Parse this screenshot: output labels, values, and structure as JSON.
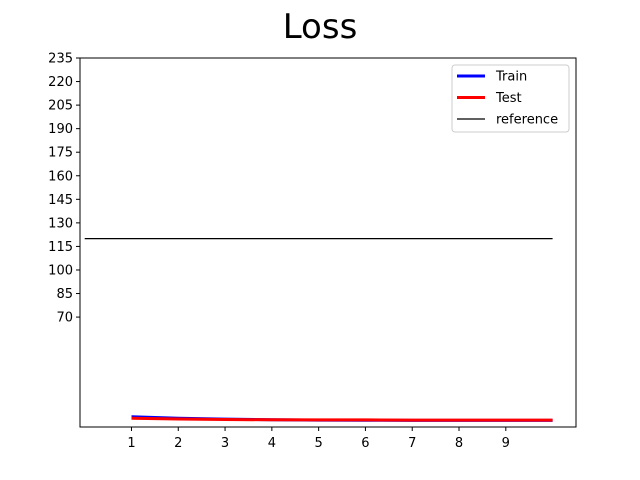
{
  "chart_data": {
    "type": "line",
    "title": "Loss",
    "xlabel": "",
    "ylabel": "",
    "x_ticks": [
      1,
      2,
      3,
      4,
      5,
      6,
      7,
      8,
      9
    ],
    "y_ticks": [
      70,
      85,
      100,
      115,
      130,
      145,
      160,
      175,
      190,
      205,
      220,
      235
    ],
    "xlim": [
      -0.1,
      10.5
    ],
    "ylim": [
      0,
      235
    ],
    "grid": false,
    "legend_position": "top-right",
    "series": [
      {
        "name": "Train",
        "color": "#0000ff",
        "x": [
          1,
          2,
          3,
          4,
          5,
          6,
          7,
          8,
          9,
          10
        ],
        "y": [
          6.5,
          5.6,
          5.0,
          4.6,
          4.4,
          4.3,
          4.2,
          4.2,
          4.2,
          4.2
        ]
      },
      {
        "name": "Test",
        "color": "#ff0000",
        "x": [
          1,
          2,
          3,
          4,
          5,
          6,
          7,
          8,
          9,
          10
        ],
        "y": [
          5.6,
          5.1,
          4.8,
          4.6,
          4.5,
          4.5,
          4.4,
          4.4,
          4.4,
          4.4
        ]
      },
      {
        "name": "reference",
        "color": "#000000",
        "x": [
          0,
          10
        ],
        "y": [
          120,
          120
        ]
      }
    ]
  }
}
